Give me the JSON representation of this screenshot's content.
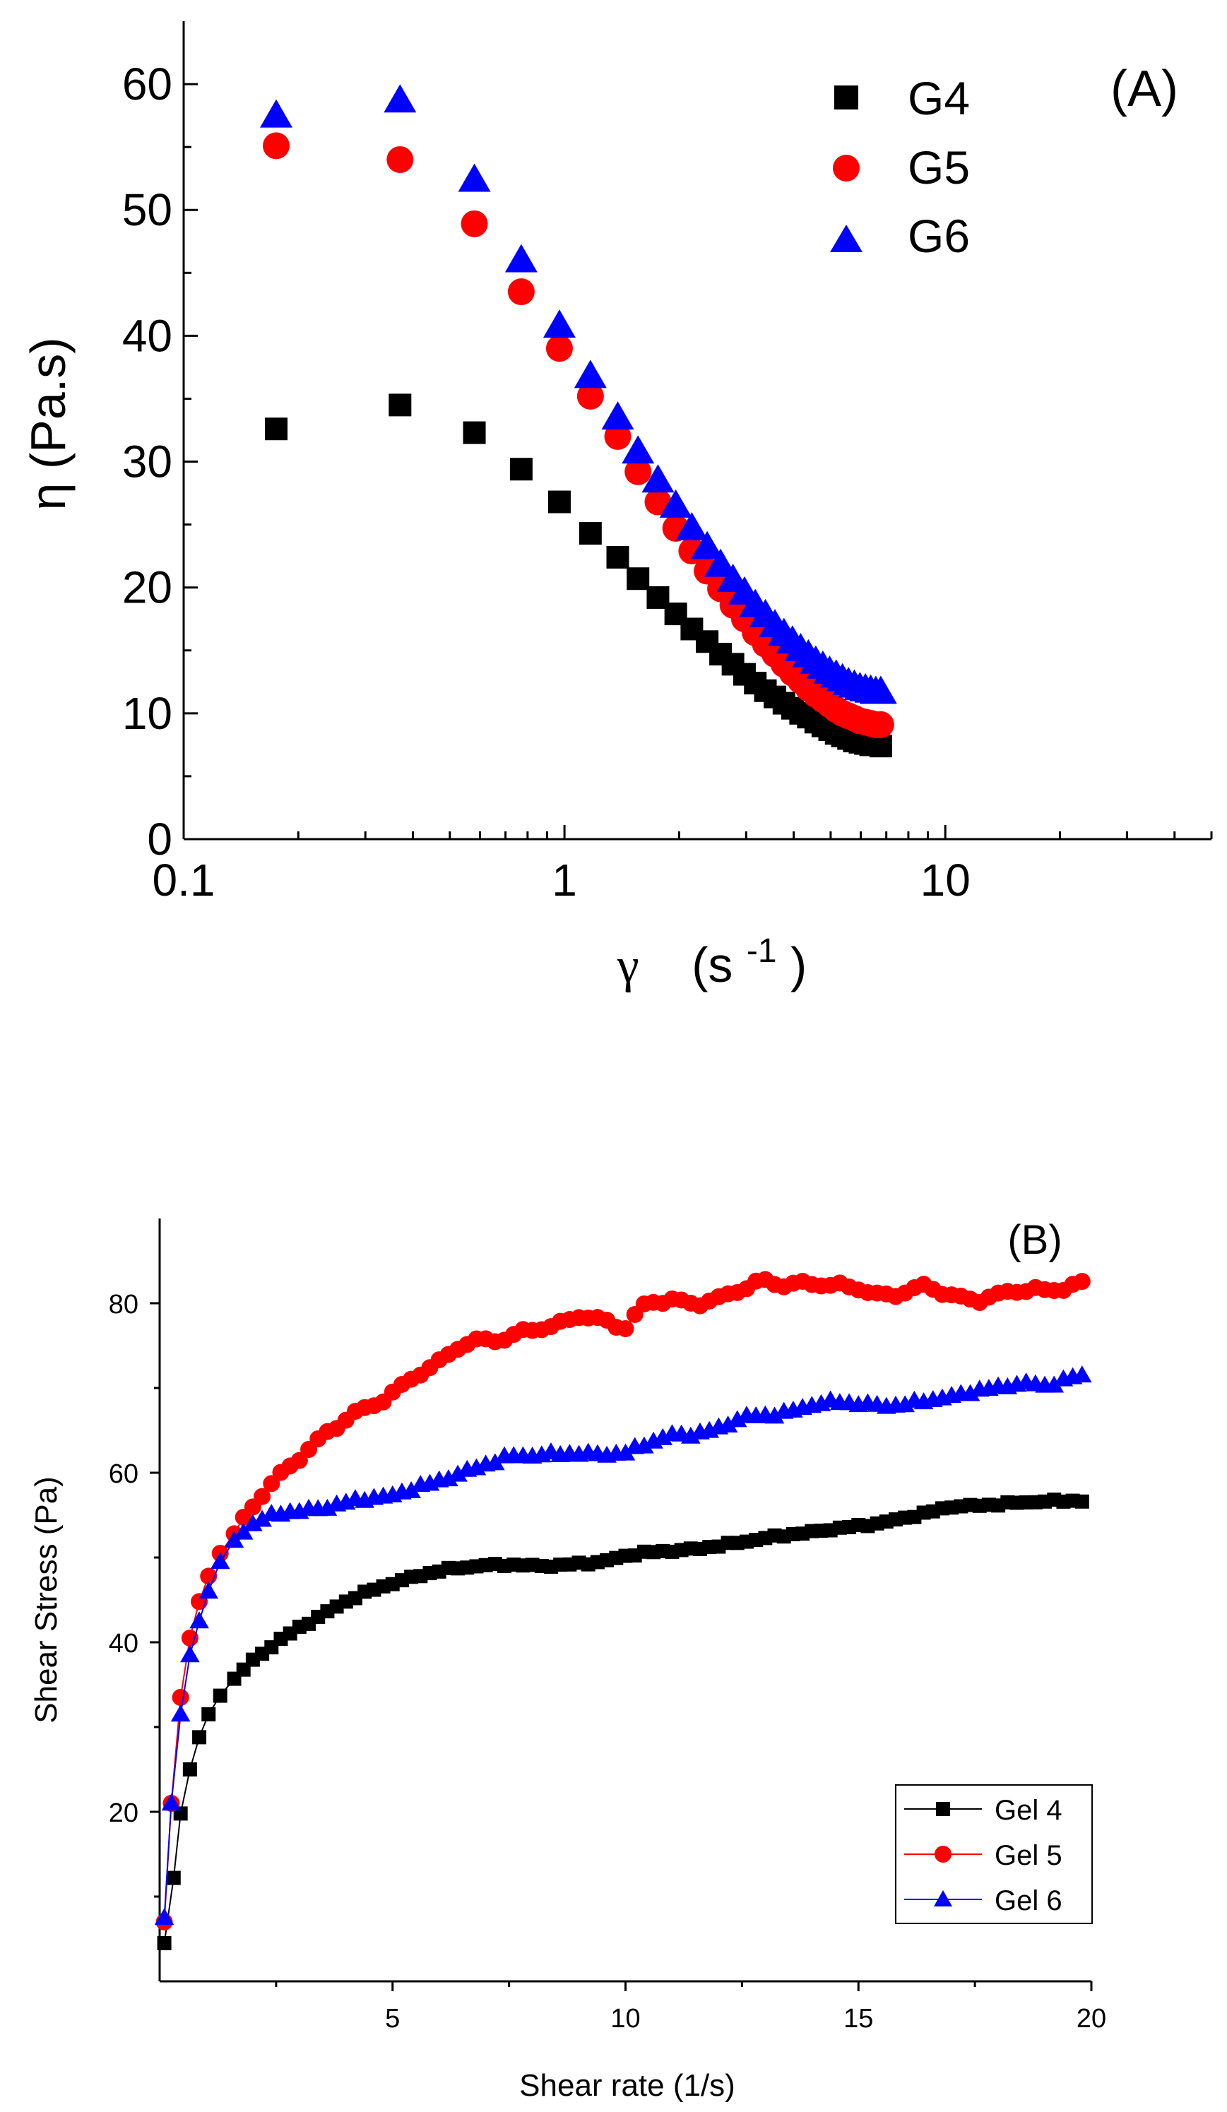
{
  "chart_data": [
    {
      "id": "A",
      "type": "scatter",
      "panel_label": "(A)",
      "xscale": "log",
      "xlim": [
        0.1,
        50
      ],
      "ylim": [
        0,
        65
      ],
      "x_ticks": [
        0.1,
        1,
        10
      ],
      "x_tick_labels": [
        "0.1",
        "1",
        "10"
      ],
      "y_ticks": [
        0,
        10,
        20,
        30,
        40,
        50,
        60
      ],
      "y_tick_labels": [
        "0",
        "10",
        "20",
        "30",
        "40",
        "50",
        "60"
      ],
      "xlabel": "γ  (s-1)",
      "xlabel_parts": {
        "symbol": "γ",
        "text": "(s",
        "exponent": "-1",
        "close": ")"
      },
      "ylabel": "η (Pa.s)",
      "legend_position": "top-right",
      "series": [
        {
          "name": "G4",
          "color": "#000000",
          "marker": "square",
          "points": [
            [
              0.175,
              32.6
            ],
            [
              0.37,
              34.5
            ],
            [
              0.58,
              32.3
            ],
            [
              0.77,
              29.4
            ],
            [
              0.97,
              26.8
            ],
            [
              1.17,
              24.3
            ],
            [
              1.38,
              22.4
            ],
            [
              1.56,
              20.7
            ],
            [
              1.76,
              19.2
            ],
            [
              1.96,
              17.9
            ],
            [
              2.16,
              16.7
            ],
            [
              2.37,
              15.7
            ],
            [
              2.57,
              14.7
            ],
            [
              2.77,
              13.9
            ],
            [
              2.97,
              13.1
            ],
            [
              3.17,
              12.4
            ],
            [
              3.37,
              11.8
            ],
            [
              3.57,
              11.3
            ],
            [
              3.77,
              10.8
            ],
            [
              3.97,
              10.4
            ],
            [
              4.17,
              10.0
            ],
            [
              4.37,
              9.7
            ],
            [
              4.57,
              9.3
            ],
            [
              4.77,
              9.0
            ],
            [
              4.97,
              8.7
            ],
            [
              5.17,
              8.4
            ],
            [
              5.37,
              8.2
            ],
            [
              5.57,
              8.0
            ],
            [
              5.77,
              7.8
            ],
            [
              5.97,
              7.7
            ],
            [
              6.17,
              7.6
            ],
            [
              6.37,
              7.5
            ],
            [
              6.57,
              7.5
            ],
            [
              6.77,
              7.4
            ]
          ]
        },
        {
          "name": "G5",
          "color": "#ff0000",
          "marker": "circle",
          "points": [
            [
              0.175,
              55.1
            ],
            [
              0.37,
              54.0
            ],
            [
              0.58,
              48.9
            ],
            [
              0.77,
              43.5
            ],
            [
              0.97,
              39.0
            ],
            [
              1.17,
              35.2
            ],
            [
              1.38,
              32.0
            ],
            [
              1.56,
              29.2
            ],
            [
              1.76,
              26.8
            ],
            [
              1.96,
              24.7
            ],
            [
              2.16,
              22.9
            ],
            [
              2.37,
              21.3
            ],
            [
              2.57,
              19.9
            ],
            [
              2.77,
              18.6
            ],
            [
              2.97,
              17.5
            ],
            [
              3.17,
              16.4
            ],
            [
              3.37,
              15.5
            ],
            [
              3.57,
              14.7
            ],
            [
              3.77,
              13.9
            ],
            [
              3.97,
              13.2
            ],
            [
              4.17,
              12.6
            ],
            [
              4.37,
              12.0
            ],
            [
              4.57,
              11.5
            ],
            [
              4.77,
              11.1
            ],
            [
              4.97,
              10.7
            ],
            [
              5.17,
              10.3
            ],
            [
              5.37,
              10.0
            ],
            [
              5.57,
              9.8
            ],
            [
              5.77,
              9.6
            ],
            [
              5.97,
              9.4
            ],
            [
              6.17,
              9.3
            ],
            [
              6.37,
              9.2
            ],
            [
              6.57,
              9.1
            ],
            [
              6.77,
              9.1
            ]
          ]
        },
        {
          "name": "G6",
          "color": "#0000ff",
          "marker": "triangle",
          "points": [
            [
              0.175,
              57.5
            ],
            [
              0.37,
              58.7
            ],
            [
              0.58,
              52.4
            ],
            [
              0.77,
              46.0
            ],
            [
              0.97,
              40.8
            ],
            [
              1.17,
              36.8
            ],
            [
              1.38,
              33.5
            ],
            [
              1.56,
              30.8
            ],
            [
              1.76,
              28.5
            ],
            [
              1.96,
              26.5
            ],
            [
              2.16,
              24.7
            ],
            [
              2.37,
              23.2
            ],
            [
              2.57,
              21.8
            ],
            [
              2.77,
              20.6
            ],
            [
              2.97,
              19.6
            ],
            [
              3.17,
              18.6
            ],
            [
              3.37,
              17.8
            ],
            [
              3.57,
              17.0
            ],
            [
              3.77,
              16.3
            ],
            [
              3.97,
              15.7
            ],
            [
              4.17,
              15.1
            ],
            [
              4.37,
              14.6
            ],
            [
              4.57,
              14.1
            ],
            [
              4.77,
              13.7
            ],
            [
              4.97,
              13.3
            ],
            [
              5.17,
              13.0
            ],
            [
              5.37,
              12.7
            ],
            [
              5.57,
              12.4
            ],
            [
              5.77,
              12.2
            ],
            [
              5.97,
              12.0
            ],
            [
              6.17,
              11.9
            ],
            [
              6.37,
              11.8
            ],
            [
              6.57,
              11.7
            ],
            [
              6.77,
              11.7
            ]
          ]
        }
      ]
    },
    {
      "id": "B",
      "type": "line",
      "panel_label": "(B)",
      "xlim": [
        0,
        20
      ],
      "ylim": [
        0,
        90
      ],
      "x_ticks": [
        5,
        10,
        15,
        20
      ],
      "x_tick_labels": [
        "5",
        "10",
        "15",
        "20"
      ],
      "y_ticks": [
        20,
        40,
        60,
        80
      ],
      "y_tick_labels": [
        "20",
        "40",
        "60",
        "80"
      ],
      "xlabel": "Shear rate (1/s)",
      "ylabel": "Shear Stress (Pa)",
      "legend_position": "bottom-right",
      "series": [
        {
          "name": "Gel 4",
          "color": "#000000",
          "marker": "square",
          "anchors": [
            [
              0.1,
              4.5
            ],
            [
              0.3,
              12.2
            ],
            [
              0.45,
              19.8
            ],
            [
              0.65,
              25.0
            ],
            [
              0.85,
              28.8
            ],
            [
              1.05,
              31.5
            ],
            [
              1.3,
              33.7
            ],
            [
              1.6,
              35.7
            ],
            [
              2.0,
              37.8
            ],
            [
              2.5,
              39.9
            ],
            [
              3.0,
              41.8
            ],
            [
              3.5,
              43.3
            ],
            [
              4.0,
              44.8
            ],
            [
              4.5,
              46.0
            ],
            [
              5.0,
              47.0
            ],
            [
              5.5,
              47.8
            ],
            [
              6.0,
              48.4
            ],
            [
              6.5,
              48.8
            ],
            [
              7.0,
              49.1
            ],
            [
              7.5,
              49.2
            ],
            [
              8.0,
              49.0
            ],
            [
              8.5,
              49.0
            ],
            [
              9.0,
              49.3
            ],
            [
              9.5,
              49.5
            ],
            [
              10.0,
              50.2
            ],
            [
              10.5,
              50.6
            ],
            [
              11.0,
              50.8
            ],
            [
              11.5,
              51.0
            ],
            [
              12.0,
              51.4
            ],
            [
              12.5,
              51.8
            ],
            [
              13.0,
              52.3
            ],
            [
              13.5,
              52.7
            ],
            [
              14.0,
              53.0
            ],
            [
              14.5,
              53.4
            ],
            [
              15.0,
              53.7
            ],
            [
              15.5,
              54.1
            ],
            [
              16.0,
              54.7
            ],
            [
              16.5,
              55.3
            ],
            [
              17.0,
              56.0
            ],
            [
              17.5,
              56.1
            ],
            [
              18.0,
              56.3
            ],
            [
              18.5,
              56.5
            ],
            [
              19.0,
              56.6
            ],
            [
              19.5,
              56.7
            ],
            [
              19.8,
              56.7
            ]
          ],
          "noise": 0.35
        },
        {
          "name": "Gel 5",
          "color": "#ff0000",
          "marker": "circle",
          "anchors": [
            [
              0.1,
              7.0
            ],
            [
              0.25,
              21.0
            ],
            [
              0.45,
              33.5
            ],
            [
              0.65,
              40.5
            ],
            [
              0.85,
              44.8
            ],
            [
              1.05,
              47.8
            ],
            [
              1.3,
              50.5
            ],
            [
              1.6,
              52.8
            ],
            [
              2.0,
              56.0
            ],
            [
              2.5,
              59.0
            ],
            [
              3.0,
              62.0
            ],
            [
              3.5,
              64.5
            ],
            [
              4.0,
              66.2
            ],
            [
              4.5,
              67.5
            ],
            [
              5.0,
              69.5
            ],
            [
              5.5,
              71.8
            ],
            [
              6.0,
              72.8
            ],
            [
              6.5,
              75.0
            ],
            [
              7.0,
              75.8
            ],
            [
              7.5,
              76.2
            ],
            [
              8.0,
              76.8
            ],
            [
              8.5,
              77.0
            ],
            [
              9.0,
              78.8
            ],
            [
              9.5,
              78.2
            ],
            [
              10.0,
              77.0
            ],
            [
              10.5,
              80.0
            ],
            [
              11.0,
              80.5
            ],
            [
              11.5,
              80.2
            ],
            [
              12.0,
              80.3
            ],
            [
              12.5,
              81.5
            ],
            [
              13.0,
              82.8
            ],
            [
              13.5,
              82.4
            ],
            [
              14.0,
              82.2
            ],
            [
              14.5,
              81.8
            ],
            [
              15.0,
              82.0
            ],
            [
              15.5,
              81.0
            ],
            [
              16.0,
              81.2
            ],
            [
              16.5,
              81.8
            ],
            [
              17.0,
              81.0
            ],
            [
              17.5,
              80.6
            ],
            [
              18.0,
              80.8
            ],
            [
              18.5,
              81.4
            ],
            [
              19.0,
              81.6
            ],
            [
              19.5,
              82.2
            ],
            [
              19.8,
              82.3
            ]
          ],
          "noise": 0.75
        },
        {
          "name": "Gel 6",
          "color": "#0000ff",
          "marker": "triangle",
          "anchors": [
            [
              0.1,
              7.5
            ],
            [
              0.25,
              21.0
            ],
            [
              0.45,
              31.5
            ],
            [
              0.65,
              38.5
            ],
            [
              0.85,
              42.5
            ],
            [
              1.05,
              46.0
            ],
            [
              1.3,
              49.5
            ],
            [
              1.6,
              52.0
            ],
            [
              2.0,
              54.0
            ],
            [
              2.5,
              55.2
            ],
            [
              3.0,
              55.5
            ],
            [
              3.5,
              55.8
            ],
            [
              4.0,
              56.5
            ],
            [
              4.5,
              57.0
            ],
            [
              5.0,
              57.3
            ],
            [
              5.5,
              58.3
            ],
            [
              6.0,
              59.0
            ],
            [
              6.5,
              60.0
            ],
            [
              7.0,
              61.0
            ],
            [
              7.5,
              62.0
            ],
            [
              8.0,
              62.0
            ],
            [
              8.5,
              62.2
            ],
            [
              9.0,
              62.3
            ],
            [
              9.5,
              62.2
            ],
            [
              10.0,
              62.3
            ],
            [
              10.5,
              63.5
            ],
            [
              11.0,
              64.5
            ],
            [
              11.5,
              64.6
            ],
            [
              12.0,
              65.2
            ],
            [
              12.5,
              66.5
            ],
            [
              13.0,
              66.8
            ],
            [
              13.5,
              67.2
            ],
            [
              14.0,
              68.0
            ],
            [
              14.5,
              68.3
            ],
            [
              15.0,
              68.2
            ],
            [
              15.5,
              68.0
            ],
            [
              16.0,
              68.0
            ],
            [
              16.5,
              68.5
            ],
            [
              17.0,
              69.0
            ],
            [
              17.5,
              69.8
            ],
            [
              18.0,
              70.0
            ],
            [
              18.5,
              70.5
            ],
            [
              19.0,
              70.3
            ],
            [
              19.5,
              71.2
            ],
            [
              19.8,
              71.5
            ]
          ],
          "noise": 0.5
        }
      ]
    }
  ]
}
